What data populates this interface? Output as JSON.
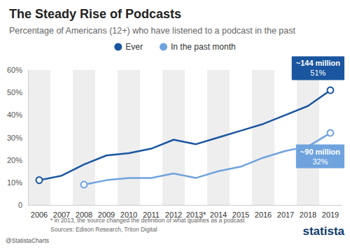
{
  "chart_data": {
    "type": "line",
    "title": "The Steady Rise of Podcasts",
    "subtitle": "Percentage of Americans (12+) who have listened to a podcast in the past",
    "categories": [
      "2006",
      "2007",
      "2008",
      "2009",
      "2010",
      "2011",
      "2012",
      "2013*",
      "2014",
      "2015",
      "2016",
      "2017",
      "2018",
      "2019"
    ],
    "series": [
      {
        "name": "Ever",
        "color": "#1a56a0",
        "values": [
          11,
          13,
          18,
          22,
          23,
          25,
          29,
          27,
          30,
          33,
          36,
          40,
          44,
          51
        ]
      },
      {
        "name": "In the past month",
        "color": "#6fa3de",
        "values": [
          null,
          null,
          9,
          11,
          12,
          12,
          14,
          12,
          15,
          17,
          21,
          24,
          26,
          32
        ]
      }
    ],
    "ylim": [
      0,
      60
    ],
    "yticks": [
      0,
      {
        "value": 10,
        "label": "10%"
      },
      {
        "value": 20,
        "label": "20%"
      },
      {
        "value": 30,
        "label": "30%"
      },
      {
        "value": 40,
        "label": "40%"
      },
      {
        "value": 50,
        "label": "50%"
      },
      {
        "value": 60,
        "label": "60%"
      }
    ],
    "grid": true,
    "legend": "top",
    "marker": "circle",
    "annotations": [
      {
        "series": "Ever",
        "category": "2019",
        "lines": [
          "~144 million",
          "51%"
        ]
      },
      {
        "series": "In the past month",
        "category": "2019",
        "lines": [
          "~90 million",
          "32%"
        ]
      }
    ],
    "footnote": "* in 2013, the source changed the definition of what qualifies as a podcast",
    "source": "Sources: Edison Research, Triton Digital",
    "credit": "@StatistaCharts",
    "brand": "statista"
  }
}
